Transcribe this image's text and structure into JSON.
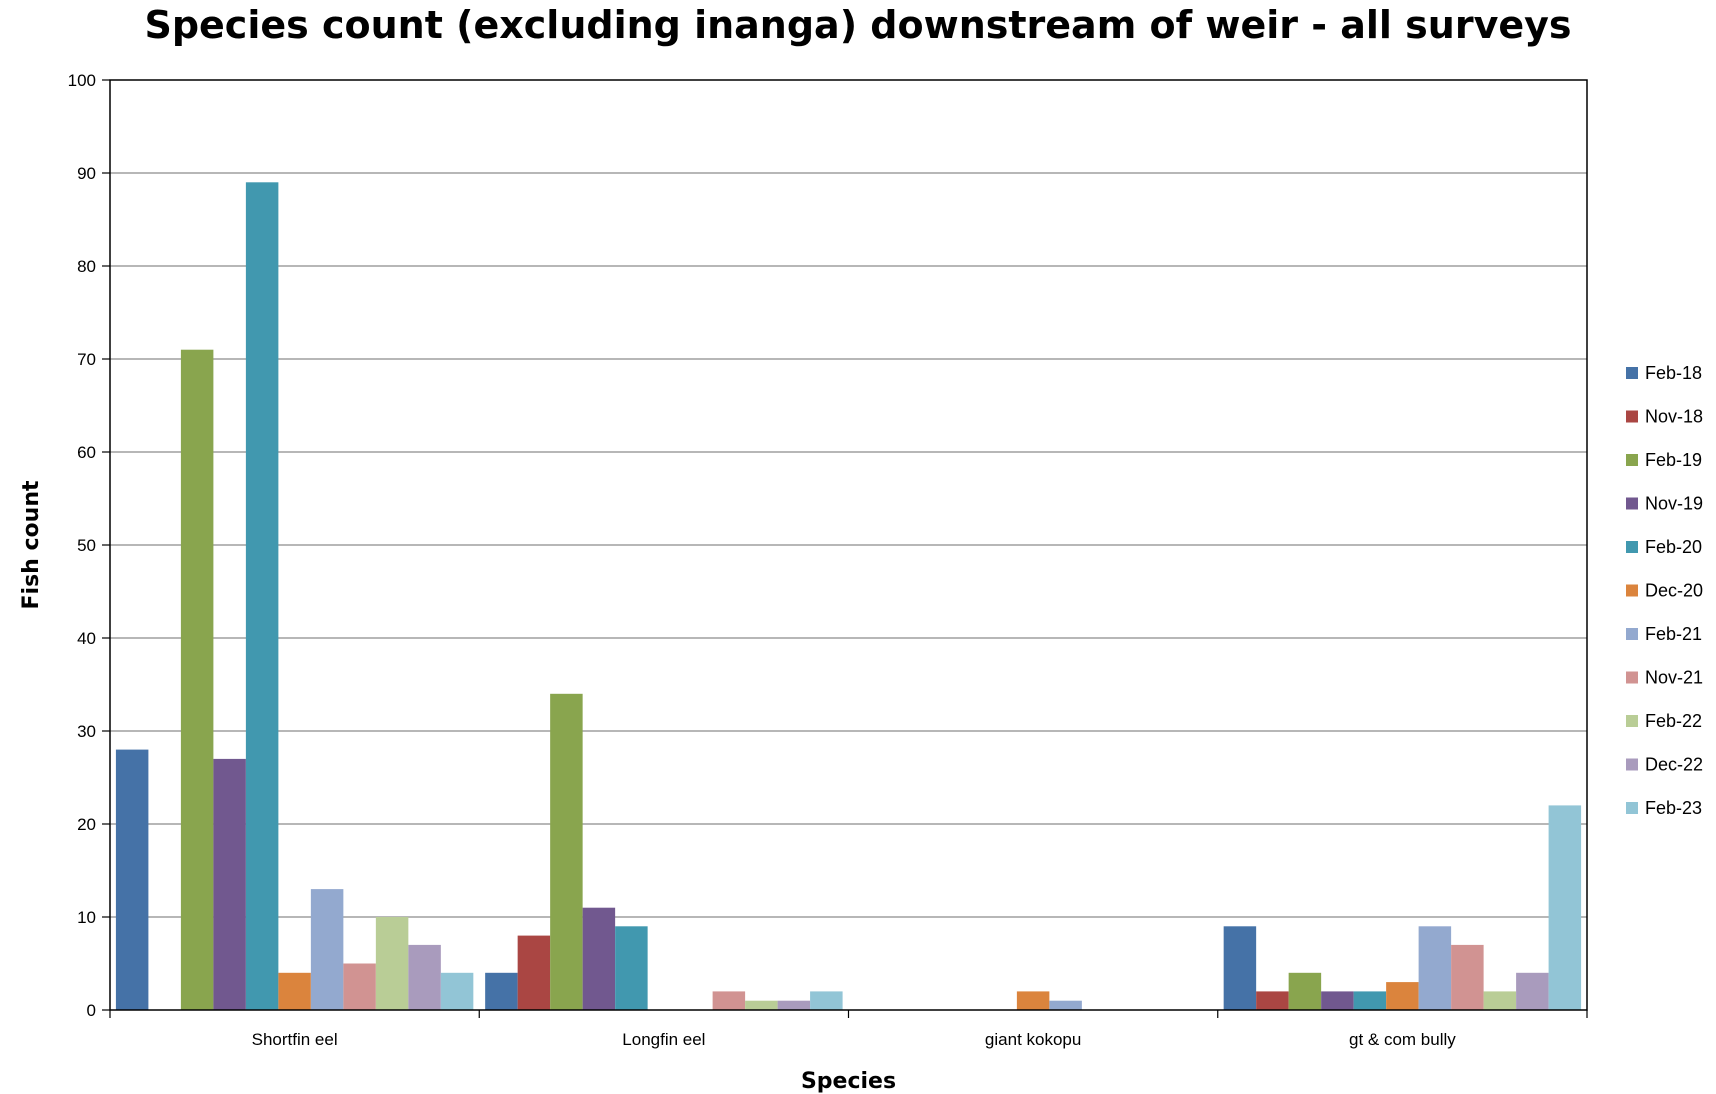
{
  "chart_data": {
    "type": "bar",
    "title": "Species count (excluding inanga) downstream of weir - all surveys",
    "xlabel": "Species",
    "ylabel": "Fish count",
    "ylim": [
      0,
      100
    ],
    "yticks": [
      0,
      10,
      20,
      30,
      40,
      50,
      60,
      70,
      80,
      90,
      100
    ],
    "grid": true,
    "legend_position": "right",
    "categories": [
      "Shortfin eel",
      "Longfin eel",
      "giant kokopu",
      "gt & com bully"
    ],
    "series": [
      {
        "name": "Feb-18",
        "color": "#4572A7",
        "values": [
          28,
          4,
          0,
          9
        ]
      },
      {
        "name": "Nov-18",
        "color": "#AA4643",
        "values": [
          0,
          8,
          0,
          2
        ]
      },
      {
        "name": "Feb-19",
        "color": "#89A54E",
        "values": [
          71,
          34,
          0,
          4
        ]
      },
      {
        "name": "Nov-19",
        "color": "#71588F",
        "values": [
          27,
          11,
          0,
          2
        ]
      },
      {
        "name": "Feb-20",
        "color": "#4198AF",
        "values": [
          89,
          9,
          0,
          2
        ]
      },
      {
        "name": "Dec-20",
        "color": "#DB843D",
        "values": [
          4,
          0,
          2,
          3
        ]
      },
      {
        "name": "Feb-21",
        "color": "#93A9CF",
        "values": [
          13,
          0,
          1,
          9
        ]
      },
      {
        "name": "Nov-21",
        "color": "#D19392",
        "values": [
          5,
          2,
          0,
          7
        ]
      },
      {
        "name": "Feb-22",
        "color": "#B9CD96",
        "values": [
          10,
          1,
          0,
          2
        ]
      },
      {
        "name": "Dec-22",
        "color": "#A99BBD",
        "values": [
          7,
          1,
          0,
          4
        ]
      },
      {
        "name": "Feb-23",
        "color": "#92C5D6",
        "values": [
          4,
          2,
          0,
          22
        ]
      }
    ]
  }
}
